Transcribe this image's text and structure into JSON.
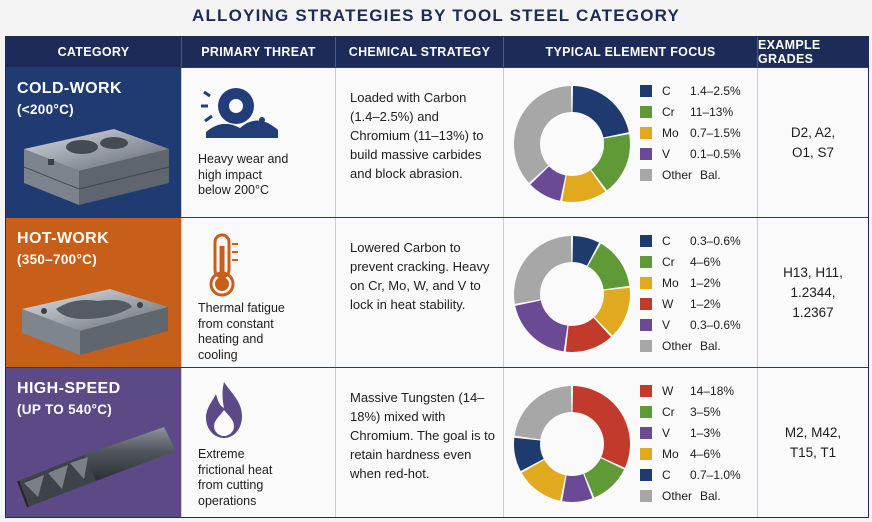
{
  "title": "ALLOYING STRATEGIES BY TOOL STEEL CATEGORY",
  "headers": {
    "category": "CATEGORY",
    "threat": "PRIMARY THREAT",
    "strategy": "CHEMICAL STRATEGY",
    "focus": "TYPICAL ELEMENT FOCUS",
    "grades": "EXAMPLE GRADES"
  },
  "colors": {
    "navy": "#1c2b57",
    "cold_bg": "#1f3b72",
    "hot_bg": "#c75e19",
    "high_bg": "#5b4a86",
    "C": "#1f3a6e",
    "Cr": "#5f9a36",
    "Mo": "#e0a91e",
    "V": "#6a4a95",
    "W": "#c13a2c",
    "Other": "#a7a7a7"
  },
  "rows": [
    {
      "cat_title": "COLD-WORK",
      "cat_sub": "(<200°C)",
      "threat": [
        "Heavy wear and",
        "high impact",
        "below 200°C"
      ],
      "strategy": "Loaded with Carbon (1.4–2.5%) and Chromium (11–13%) to build massive carbides and block abrasion.",
      "grades": [
        "D2, A2,",
        "O1, S7"
      ],
      "legend": [
        {
          "el": "C",
          "val": "1.4–2.5%"
        },
        {
          "el": "Cr",
          "val": "11–13%"
        },
        {
          "el": "Mo",
          "val": "0.7–1.5%"
        },
        {
          "el": "V",
          "val": "0.1–0.5%"
        },
        {
          "el": "Other",
          "val": "Bal."
        }
      ]
    },
    {
      "cat_title": "HOT-WORK",
      "cat_sub": "(350–700°C)",
      "threat": [
        "Thermal fatigue",
        "from constant",
        "heating and",
        "cooling"
      ],
      "strategy": "Lowered Carbon to prevent cracking. Heavy on Cr, Mo, W, and V to lock in heat stability.",
      "grades": [
        "H13, H11,",
        "1.2344,",
        "1.2367"
      ],
      "legend": [
        {
          "el": "C",
          "val": "0.3–0.6%"
        },
        {
          "el": "Cr",
          "val": "4–6%"
        },
        {
          "el": "Mo",
          "val": "1–2%"
        },
        {
          "el": "W",
          "val": "1–2%"
        },
        {
          "el": "V",
          "val": "0.3–0.6%"
        },
        {
          "el": "Other",
          "val": "Bal."
        }
      ]
    },
    {
      "cat_title": "HIGH-SPEED",
      "cat_sub": "(UP TO 540°C)",
      "threat": [
        "Extreme",
        "frictional heat",
        "from cutting",
        "operations"
      ],
      "strategy": "Massive Tungsten (14–18%) mixed with Chromium. The goal is to retain hardness even when red-hot.",
      "grades": [
        "M2, M42,",
        "T15, T1"
      ],
      "legend": [
        {
          "el": "W",
          "val": "14–18%"
        },
        {
          "el": "Cr",
          "val": "3–5%"
        },
        {
          "el": "V",
          "val": "1–3%"
        },
        {
          "el": "Mo",
          "val": "4–6%"
        },
        {
          "el": "C",
          "val": "0.7–1.0%"
        },
        {
          "el": "Other",
          "val": "Bal."
        }
      ]
    }
  ],
  "chart_data": [
    {
      "type": "pie",
      "categories": [
        "C",
        "Cr",
        "Mo",
        "V",
        "Other"
      ],
      "values": [
        22,
        18,
        13,
        10,
        37
      ],
      "title": ""
    },
    {
      "type": "pie",
      "categories": [
        "C",
        "Cr",
        "Mo",
        "W",
        "V",
        "Other"
      ],
      "values": [
        8,
        15,
        15,
        14,
        20,
        28
      ],
      "title": ""
    },
    {
      "type": "pie",
      "categories": [
        "W",
        "Cr",
        "V",
        "Mo",
        "C",
        "Other"
      ],
      "values": [
        32,
        12,
        9,
        14,
        10,
        23
      ],
      "title": ""
    }
  ]
}
